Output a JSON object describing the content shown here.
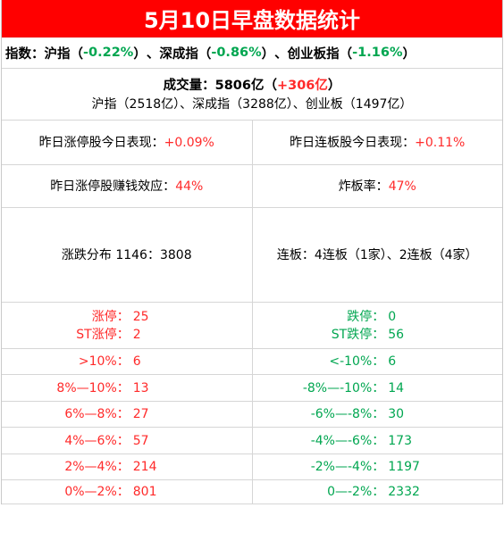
{
  "title": "5月10日早盘数据统计",
  "indices": {
    "prefix": "指数：",
    "items": [
      {
        "name": "沪指",
        "value": "-0.22%"
      },
      {
        "name": "深成指",
        "value": "-0.86%"
      },
      {
        "name": "创业板指",
        "value": "-1.16%"
      }
    ],
    "open_paren": "（",
    "close_paren": "）",
    "sep": "、"
  },
  "volume": {
    "label": "成交量：",
    "amount": "5806亿",
    "open": "（",
    "change": "+306亿",
    "close": "）",
    "breakdown": "沪指（2518亿）、深成指（3288亿）、创业板（1497亿）"
  },
  "row_perf": {
    "left_label": "昨日涨停股今日表现：",
    "left_value": "+0.09%",
    "right_label": "昨日连板股今日表现：",
    "right_value": "+0.11%"
  },
  "row_effect": {
    "left_label": "昨日涨停股赚钱效应：",
    "left_value": "44%",
    "right_label": "炸板率：",
    "right_value": "47%"
  },
  "row_dist": {
    "left": "涨跌分布 1146：3808",
    "right": "连板：4连板（1家）、2连板（4家）"
  },
  "limits": {
    "left": [
      {
        "label": "涨停：",
        "value": "25"
      },
      {
        "label": "ST涨停：",
        "value": "2"
      }
    ],
    "right": [
      {
        "label": "跌停：",
        "value": "0"
      },
      {
        "label": "ST跌停：",
        "value": "56"
      }
    ]
  },
  "buckets": [
    {
      "left_label": ">10%：",
      "left_value": "6",
      "right_label": "<-10%：",
      "right_value": "6"
    },
    {
      "left_label": "8%—10%：",
      "left_value": "13",
      "right_label": "-8%—-10%：",
      "right_value": "14"
    },
    {
      "left_label": "6%—8%：",
      "left_value": "27",
      "right_label": "-6%—-8%：",
      "right_value": "30"
    },
    {
      "left_label": "4%—6%：",
      "left_value": "57",
      "right_label": "-4%—-6%：",
      "right_value": "173"
    },
    {
      "left_label": "2%—4%：",
      "left_value": "214",
      "right_label": "-2%—-4%：",
      "right_value": "1197"
    },
    {
      "left_label": "0%—2%：",
      "left_value": "801",
      "right_label": "0—-2%：",
      "right_value": "2332"
    }
  ],
  "colors": {
    "title_bg": "#ff0000",
    "up": "#ff2a2a",
    "down": "#00a650"
  }
}
